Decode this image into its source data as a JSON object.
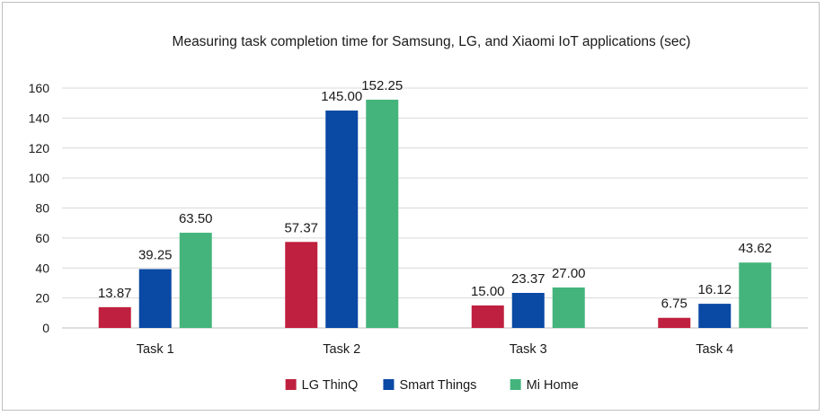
{
  "chart_data": {
    "type": "bar",
    "title": "Measuring task completion time for Samsung, LG, and Xiaomi IoT applications (sec)",
    "xlabel": "",
    "ylabel": "",
    "categories": [
      "Task 1",
      "Task 2",
      "Task 3",
      "Task 4"
    ],
    "series": [
      {
        "name": "LG ThinQ",
        "color": "#c0203f",
        "values": [
          13.87,
          57.37,
          15.0,
          6.75
        ],
        "labels": [
          "13.87",
          "57.37",
          "15.00",
          "6.75"
        ]
      },
      {
        "name": "Smart Things",
        "color": "#0a49a4",
        "values": [
          39.25,
          145.0,
          23.37,
          16.12
        ],
        "labels": [
          "39.25",
          "145.00",
          "23.37",
          "16.12"
        ]
      },
      {
        "name": "Mi Home",
        "color": "#45b47c",
        "values": [
          63.5,
          152.25,
          27.0,
          43.62
        ],
        "labels": [
          "63.50",
          "152.25",
          "27.00",
          "43.62"
        ]
      }
    ],
    "ylim": [
      0,
      160
    ],
    "yticks": [
      0,
      20,
      40,
      60,
      80,
      100,
      120,
      140,
      160
    ],
    "grid": true,
    "legend_position": "bottom"
  }
}
